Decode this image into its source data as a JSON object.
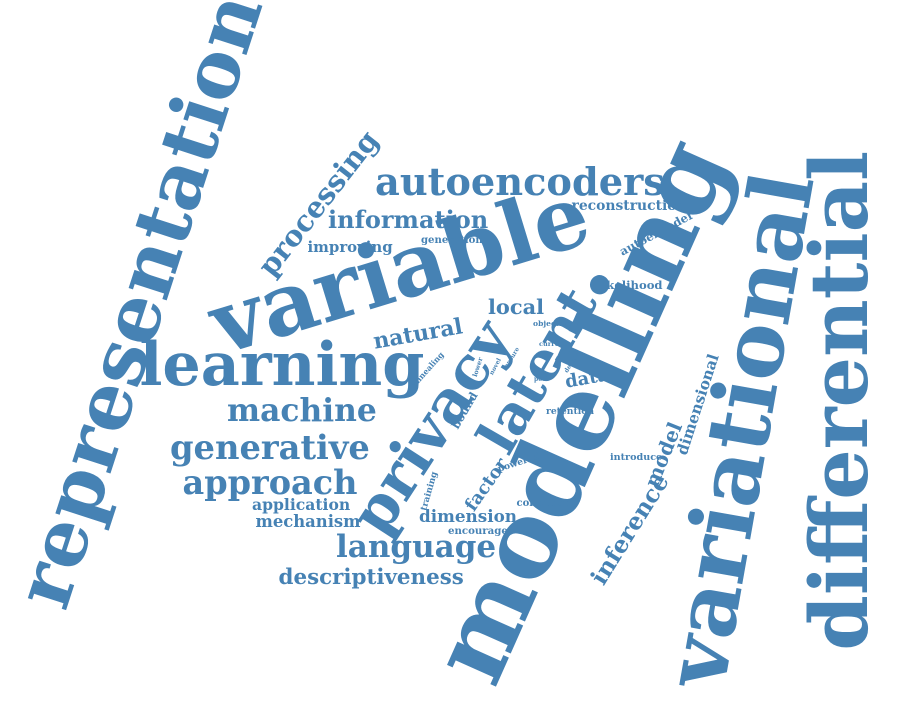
{
  "word_color": "#4682b4",
  "background_color": "#ffffff",
  "words": [
    {
      "id": "representation",
      "text": "representation"
    },
    {
      "id": "differential",
      "text": "differential"
    },
    {
      "id": "variational",
      "text": "variational"
    },
    {
      "id": "modelling",
      "text": "modelling"
    },
    {
      "id": "variable",
      "text": "variable"
    },
    {
      "id": "learning",
      "text": "learning"
    },
    {
      "id": "latent",
      "text": "latent"
    },
    {
      "id": "privacy",
      "text": "privacy"
    },
    {
      "id": "autoencoders",
      "text": "autoencoders"
    },
    {
      "id": "processing",
      "text": "processing"
    },
    {
      "id": "information",
      "text": "information"
    },
    {
      "id": "reconstruction",
      "text": "reconstruction"
    },
    {
      "id": "improving",
      "text": "improving"
    },
    {
      "id": "generation",
      "text": "generation"
    },
    {
      "id": "autoencoder",
      "text": "autoencoder"
    },
    {
      "id": "likelihood",
      "text": "likelihood"
    },
    {
      "id": "local",
      "text": "local"
    },
    {
      "id": "objective",
      "text": "objective"
    },
    {
      "id": "natural",
      "text": "natural"
    },
    {
      "id": "data",
      "text": "data"
    },
    {
      "id": "current",
      "text": "current"
    },
    {
      "id": "annealing",
      "text": "annealing"
    },
    {
      "id": "lower",
      "text": "lower"
    },
    {
      "id": "novel",
      "text": "novel"
    },
    {
      "id": "ensure",
      "text": "ensure"
    },
    {
      "id": "design",
      "text": "design"
    },
    {
      "id": "pool",
      "text": "pool"
    },
    {
      "id": "bound",
      "text": "bound"
    },
    {
      "id": "retention",
      "text": "retention"
    },
    {
      "id": "machine",
      "text": "machine"
    },
    {
      "id": "generative",
      "text": "generative"
    },
    {
      "id": "approach",
      "text": "approach"
    },
    {
      "id": "application",
      "text": "application"
    },
    {
      "id": "mechanism",
      "text": "mechanism"
    },
    {
      "id": "language",
      "text": "language"
    },
    {
      "id": "descriptiveness",
      "text": "descriptiveness"
    },
    {
      "id": "dimension",
      "text": "dimension"
    },
    {
      "id": "encourage",
      "text": "encourage"
    },
    {
      "id": "collection",
      "text": "collection"
    },
    {
      "id": "factor",
      "text": "factor"
    },
    {
      "id": "powerful",
      "text": "powerful"
    },
    {
      "id": "training",
      "text": "training"
    },
    {
      "id": "model",
      "text": "model"
    },
    {
      "id": "dimensional",
      "text": "dimensional"
    },
    {
      "id": "introduce",
      "text": "introduce"
    },
    {
      "id": "inference",
      "text": "inference"
    }
  ]
}
